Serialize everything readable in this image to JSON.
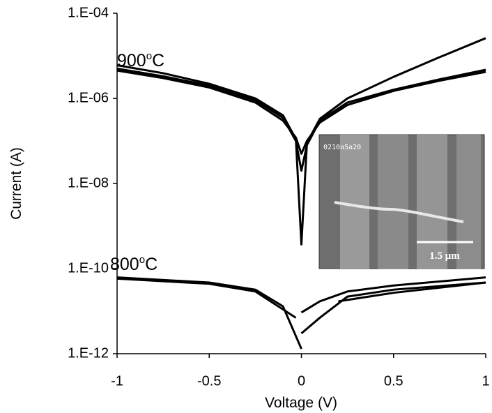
{
  "chart_data": {
    "type": "line",
    "x_label": "Voltage (V)",
    "y_label": "Current (A)",
    "xlim": [
      -1,
      1
    ],
    "xticks": [
      -1,
      -0.5,
      0,
      0.5,
      1
    ],
    "ylim": [
      1e-12,
      0.0001
    ],
    "yticks": [
      {
        "value": 0.0001,
        "label": "1.E-04"
      },
      {
        "value": 1e-06,
        "label": "1.E-06"
      },
      {
        "value": 1e-08,
        "label": "1.E-08"
      },
      {
        "value": 1e-10,
        "label": "1.E-10"
      },
      {
        "value": 1e-12,
        "label": "1.E-12"
      }
    ],
    "log_y": true,
    "grid": false,
    "color": "#000000",
    "annotations": [
      {
        "text": "900",
        "superscript": "o",
        "suffix": "C"
      },
      {
        "text": "800",
        "superscript": "o",
        "suffix": "C"
      }
    ],
    "inset": {
      "code": "0210a5a20",
      "scale_bar": "1.5 μm"
    },
    "series": [
      {
        "x": [
          -1,
          -0.75,
          -0.5,
          -0.25,
          -0.1,
          -0.03,
          0,
          0.03,
          0.1,
          0.25,
          0.5,
          0.75,
          1
        ],
        "values": [
          6e-06,
          3.9e-06,
          2.2e-06,
          1e-06,
          4e-07,
          1.1e-07,
          3.7e-10,
          9e-08,
          3.3e-07,
          1e-06,
          3.2e-06,
          9.3e-06,
          2.6e-05
        ]
      },
      {
        "x": [
          -1,
          -0.75,
          -0.5,
          -0.25,
          -0.1,
          -0.03,
          0,
          0.03,
          0.1,
          0.25,
          0.5,
          0.75,
          1
        ],
        "values": [
          5e-06,
          3.3e-06,
          2e-06,
          9e-07,
          3.5e-07,
          1e-07,
          2e-08,
          8e-08,
          3e-07,
          8e-07,
          1.6e-06,
          2.8e-06,
          4.7e-06
        ]
      },
      {
        "x": [
          -1,
          -0.75,
          -0.5,
          -0.25,
          -0.1,
          -0.03,
          0,
          0.03,
          0.1,
          0.25,
          0.5,
          0.75,
          1
        ],
        "values": [
          4.5e-06,
          3e-06,
          1.8e-06,
          8e-07,
          3e-07,
          1.2e-07,
          5e-08,
          1e-07,
          2.7e-07,
          7e-07,
          1.5e-06,
          2.6e-06,
          4.2e-06
        ]
      },
      {
        "x": [
          -1,
          -0.5,
          -0.25,
          -0.1,
          0
        ],
        "values": [
          6.2e-11,
          4.7e-11,
          3.2e-11,
          1.3e-11,
          1.3e-12
        ]
      },
      {
        "x": [
          -1,
          -0.5,
          -0.25,
          -0.03
        ],
        "values": [
          5.8e-11,
          4.4e-11,
          2.9e-11,
          7e-12
        ]
      },
      {
        "x": [
          0,
          0.1,
          0.25,
          0.5,
          1
        ],
        "values": [
          9.3e-12,
          1.7e-11,
          2.9e-11,
          4e-11,
          6.2e-11
        ]
      },
      {
        "x": [
          0,
          0.1,
          0.25,
          0.5,
          1
        ],
        "values": [
          3e-12,
          7e-12,
          2.2e-11,
          3.2e-11,
          4.7e-11
        ]
      },
      {
        "x": [
          0.2,
          0.5,
          1
        ],
        "values": [
          1.7e-11,
          2.7e-11,
          4.7e-11
        ]
      }
    ]
  }
}
